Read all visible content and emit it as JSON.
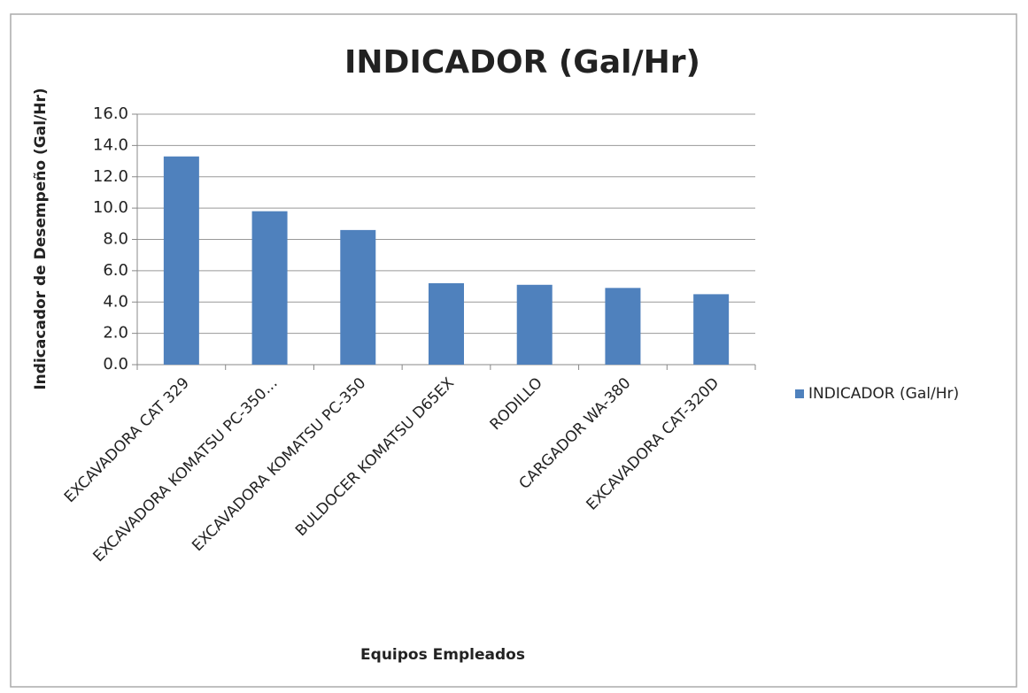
{
  "chart_data": {
    "type": "bar",
    "title": "INDICADOR (Gal/Hr)",
    "x_label": "Equipos Empleados",
    "y_label": "Indicacador de Desempeño (Gal/Hr)",
    "categories": [
      "EXCAVADORA CAT 329",
      "EXCAVADORA KOMATSU PC-350…",
      "EXCAVADORA KOMATSU PC-350",
      "BULDOCER KOMATSU D65EX",
      "RODILLO",
      "CARGADOR WA-380",
      "EXCAVADORA CAT-320D"
    ],
    "series": [
      {
        "name": "INDICADOR (Gal/Hr)",
        "color": "#4f81bd",
        "values": [
          13.3,
          9.8,
          8.6,
          5.2,
          5.1,
          4.9,
          4.5
        ]
      }
    ],
    "ylim": [
      0,
      16
    ],
    "yticks": [
      {
        "value": 0,
        "label": "0.0"
      },
      {
        "value": 2,
        "label": "2.0"
      },
      {
        "value": 4,
        "label": "4.0"
      },
      {
        "value": 6,
        "label": "6.0"
      },
      {
        "value": 8,
        "label": "8.0"
      },
      {
        "value": 10,
        "label": "10.0"
      },
      {
        "value": 12,
        "label": "12.0"
      },
      {
        "value": 14,
        "label": "14.0"
      },
      {
        "value": 16,
        "label": "16.0"
      }
    ],
    "grid": true,
    "legend": "right"
  }
}
